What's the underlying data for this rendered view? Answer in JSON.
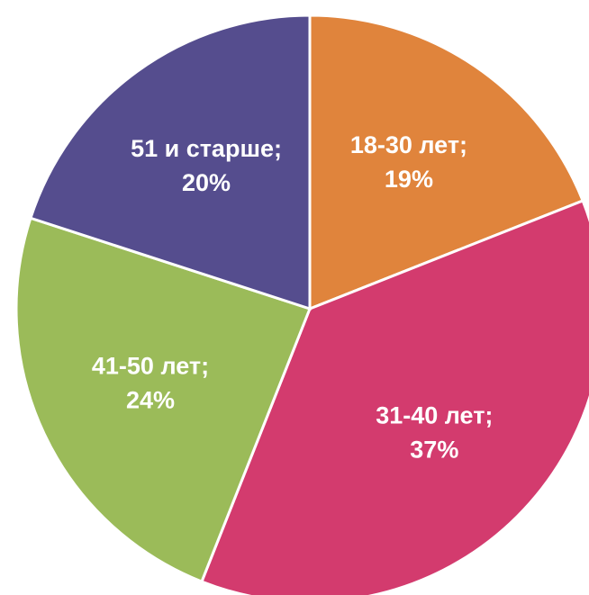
{
  "chart_data": {
    "type": "pie",
    "categories": [
      "18-30 лет;",
      "31-40 лет;",
      "41-50 лет;",
      "51 и старше;"
    ],
    "values": [
      19,
      37,
      24,
      20
    ],
    "value_labels": [
      "19%",
      "37%",
      "24%",
      "20%"
    ],
    "colors": [
      "#e0843c",
      "#d33b6e",
      "#9bbb59",
      "#554d8e"
    ]
  }
}
